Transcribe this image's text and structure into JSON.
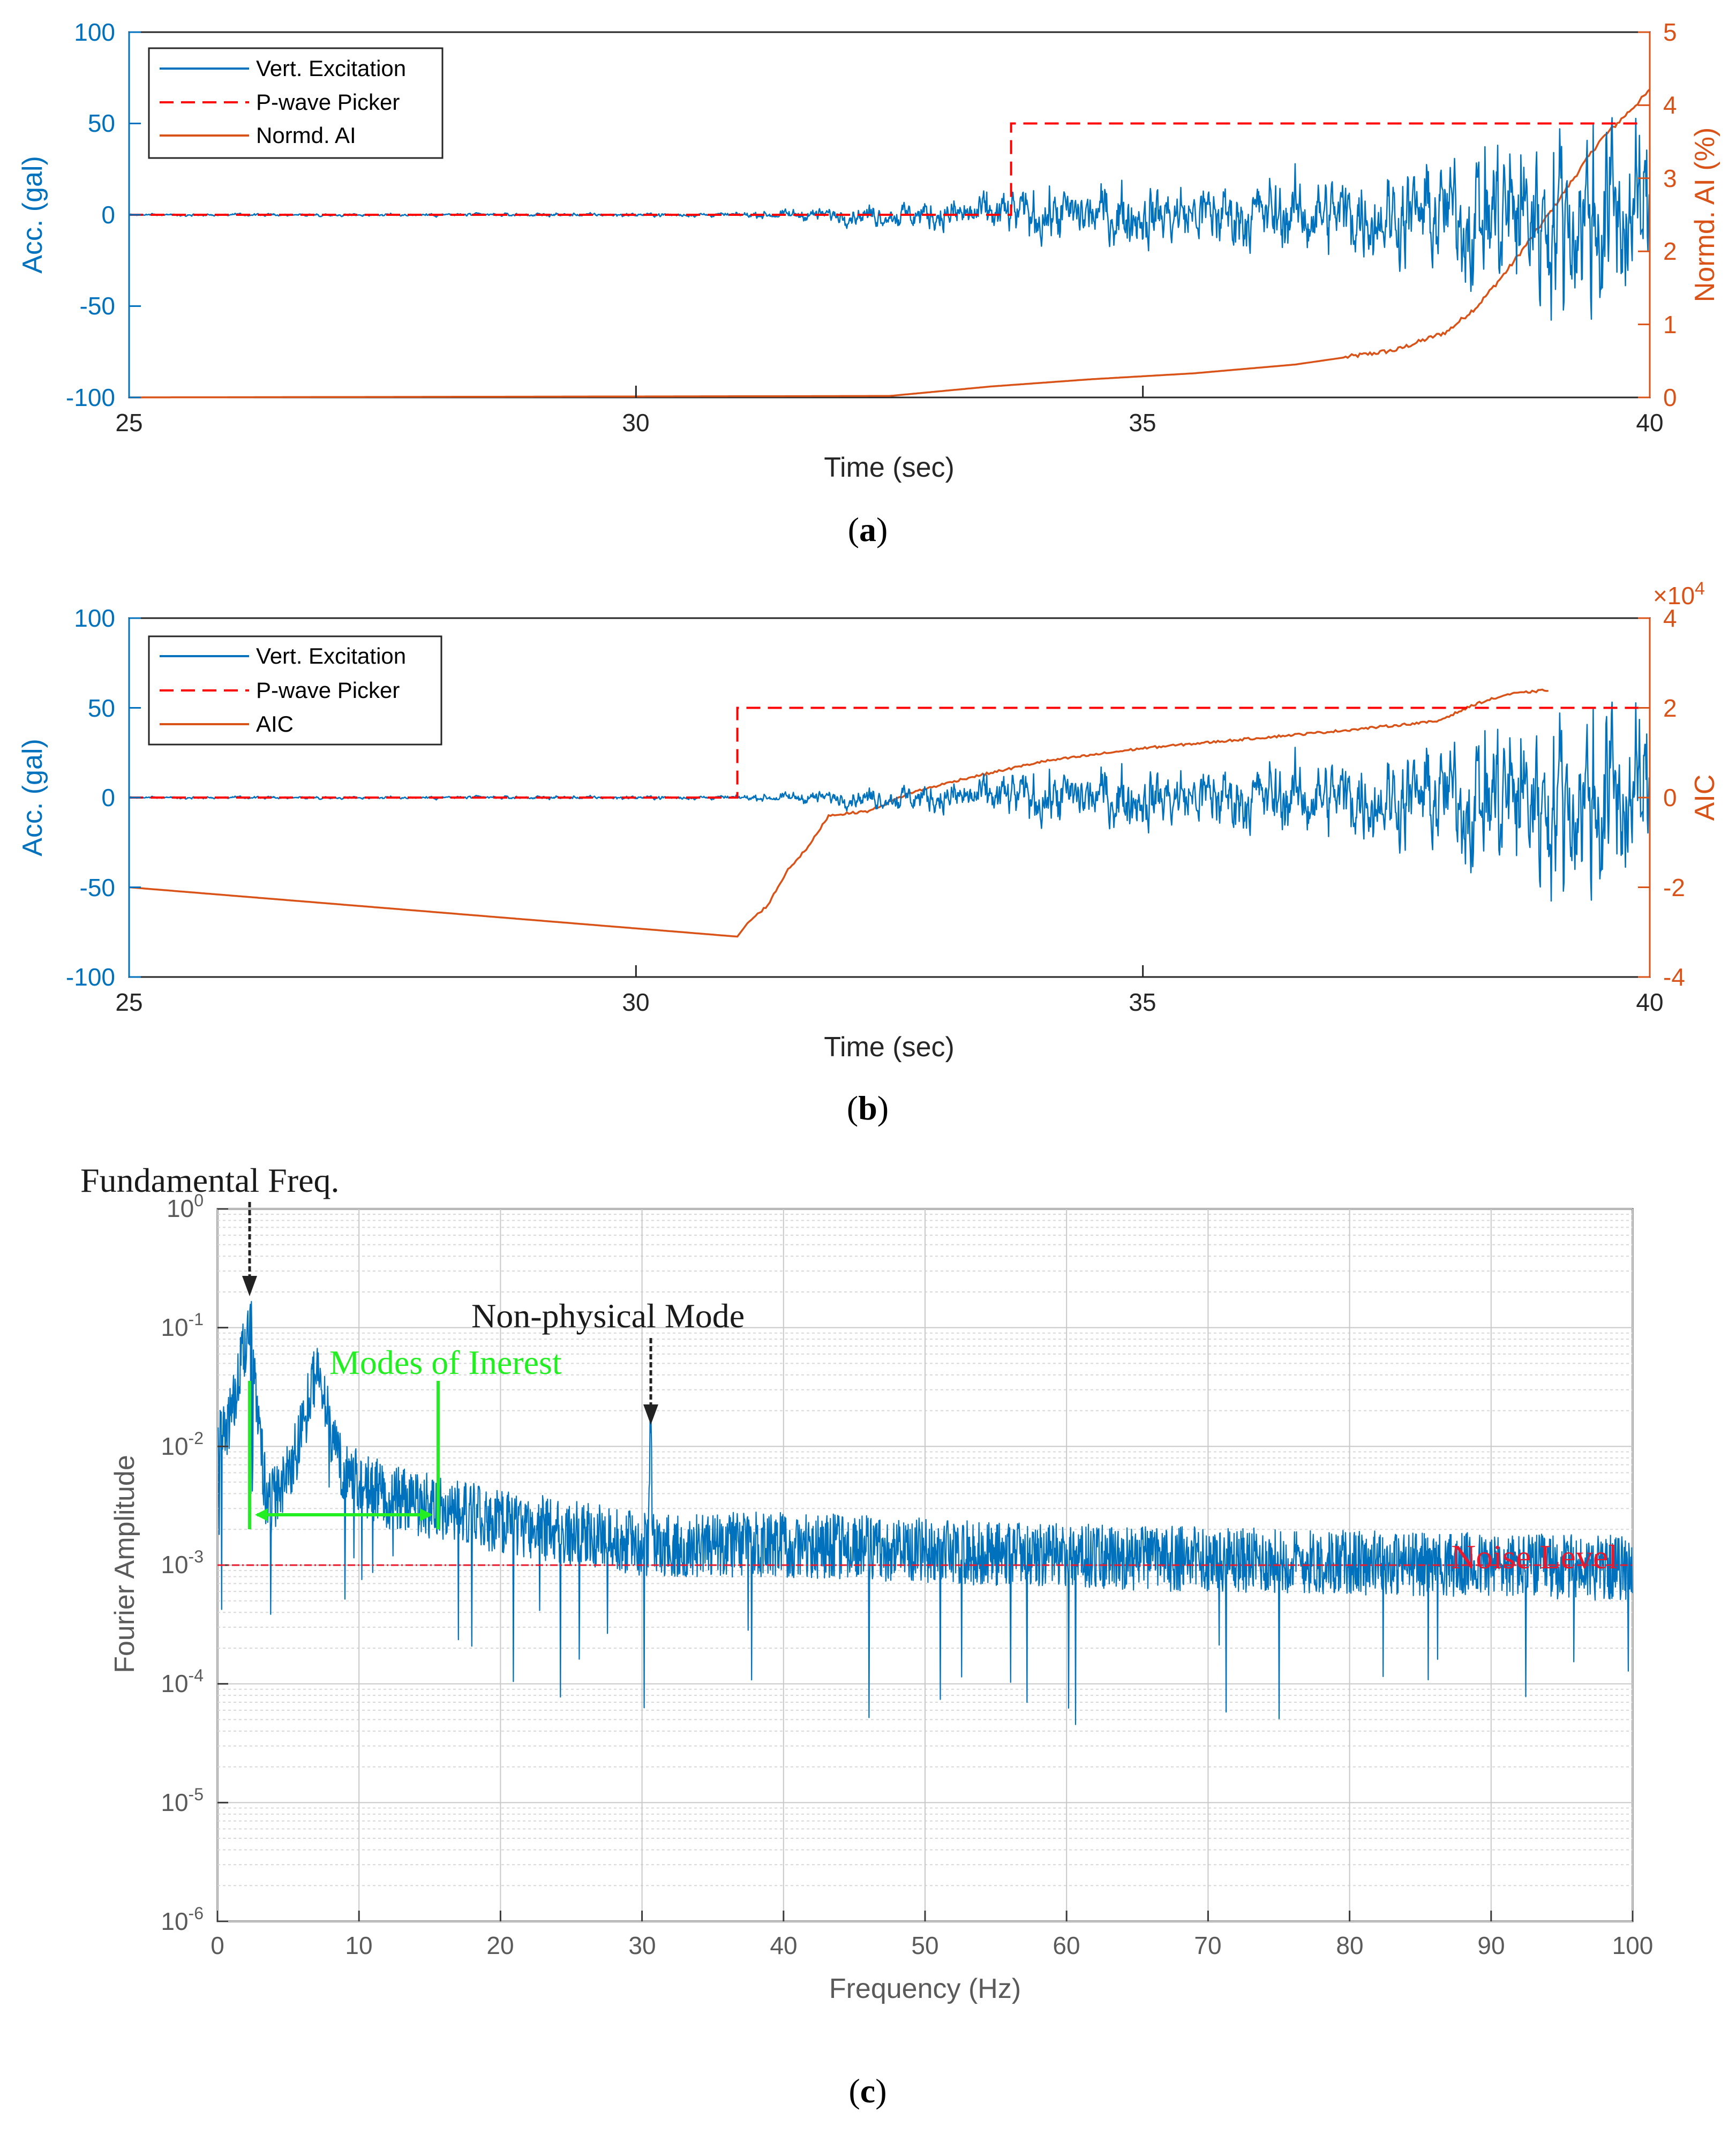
{
  "chart_data": [
    {
      "id": "a",
      "type": "line",
      "caption": "a",
      "xlabel": "Time (sec)",
      "ylabel": "Acc. (gal)",
      "y2label": "Normd. AI (%)",
      "xlim": [
        25,
        40
      ],
      "ylim": [
        -100,
        100
      ],
      "y2lim": [
        0,
        5
      ],
      "xticks": [
        "25",
        "30",
        "35",
        "40"
      ],
      "yticks": [
        "100",
        "50",
        "0",
        "-50",
        "-100"
      ],
      "y2ticks": [
        "5",
        "4",
        "3",
        "2",
        "1",
        "0"
      ],
      "legend": [
        "Vert. Excitation",
        "P-wave Picker",
        "Normd. AI"
      ],
      "colors": {
        "signal": "#0072BD",
        "picker": "#FF0000",
        "curve": "#D95319"
      },
      "signal_onset": 31.0,
      "signal_envelope": {
        "x": [
          25,
          31,
          32,
          33,
          34,
          35,
          36,
          37,
          38,
          38.5,
          39,
          39.5,
          40
        ],
        "amp": [
          0.5,
          1,
          4,
          8,
          14,
          16,
          18,
          20,
          28,
          45,
          45,
          55,
          40
        ]
      },
      "picker": {
        "x_step": 33.7,
        "y_high": 50
      },
      "curve": {
        "x": [
          25,
          32.5,
          33.5,
          34.5,
          35.5,
          36.5,
          37.5,
          38.0,
          38.3,
          38.6,
          39.0,
          39.5,
          40.0
        ],
        "y": [
          0,
          0.02,
          0.15,
          0.25,
          0.33,
          0.45,
          0.65,
          0.9,
          1.25,
          1.75,
          2.5,
          3.5,
          4.2
        ]
      }
    },
    {
      "id": "b",
      "type": "line",
      "caption": "b",
      "xlabel": "Time (sec)",
      "ylabel": "Acc. (gal)",
      "y2label": "AIC",
      "y2_exponent": "×10",
      "y2_exponent_power": "4",
      "xlim": [
        25,
        40
      ],
      "ylim": [
        -100,
        100
      ],
      "y2lim": [
        -4,
        4
      ],
      "xticks": [
        "25",
        "30",
        "35",
        "40"
      ],
      "yticks": [
        "100",
        "50",
        "0",
        "-50",
        "-100"
      ],
      "y2ticks": [
        "4",
        "2",
        "0",
        "-2",
        "-4"
      ],
      "legend": [
        "Vert. Excitation",
        "P-wave Picker",
        "AIC"
      ],
      "colors": {
        "signal": "#0072BD",
        "picker": "#FF0000",
        "curve": "#D95319"
      },
      "signal_onset": 31.0,
      "signal_envelope": {
        "x": [
          25,
          31,
          32,
          33,
          34,
          35,
          36,
          37,
          38,
          38.5,
          39,
          39.5,
          40
        ],
        "amp": [
          0.5,
          1,
          4,
          8,
          14,
          16,
          18,
          20,
          28,
          45,
          45,
          55,
          40
        ]
      },
      "picker": {
        "x_step": 31.0,
        "y_high": 50
      },
      "curve": {
        "x": [
          25,
          31.0,
          31.1,
          31.3,
          31.5,
          31.7,
          31.9,
          32.3,
          32.7,
          33.2,
          34.0,
          35.0,
          36.0,
          37.0,
          37.9,
          38.3,
          38.6,
          39.0
        ],
        "y": [
          -2.0,
          -3.1,
          -2.8,
          -2.4,
          -1.6,
          -1.1,
          -0.4,
          -0.3,
          0.1,
          0.4,
          0.8,
          1.1,
          1.3,
          1.5,
          1.7,
          2.1,
          2.3,
          2.4
        ]
      }
    },
    {
      "id": "c",
      "type": "line",
      "caption": "c",
      "scale": "log",
      "xlabel": "Frequency (Hz)",
      "ylabel": "Fourier Amplitude",
      "xlim": [
        0,
        100
      ],
      "ylim": [
        1e-06,
        1
      ],
      "xticks": [
        "0",
        "10",
        "20",
        "30",
        "40",
        "50",
        "60",
        "70",
        "80",
        "90",
        "100"
      ],
      "yticks": [
        {
          "base": "10",
          "exp": "0"
        },
        {
          "base": "10",
          "exp": "-1"
        },
        {
          "base": "10",
          "exp": "-2"
        },
        {
          "base": "10",
          "exp": "-3"
        },
        {
          "base": "10",
          "exp": "-4"
        },
        {
          "base": "10",
          "exp": "-5"
        },
        {
          "base": "10",
          "exp": "-6"
        }
      ],
      "spectrum_envelope": {
        "x": [
          0,
          1,
          2.3,
          3.5,
          5,
          7,
          9,
          12,
          16,
          20,
          25,
          30,
          40,
          60,
          80,
          100
        ],
        "log10_level": [
          -2.0,
          -1.7,
          -0.9,
          -2.5,
          -2.2,
          -1.5,
          -2.2,
          -2.4,
          -2.5,
          -2.6,
          -2.7,
          -2.8,
          -2.8,
          -2.9,
          -2.95,
          -3.0
        ]
      },
      "peaks": [
        {
          "x": 2.3,
          "log10": -0.83
        },
        {
          "x": 7.0,
          "log10": -1.4
        },
        {
          "x": 30.6,
          "log10": -1.75
        }
      ],
      "noise_level": 0.001,
      "annotations": {
        "fundamental": "Fundamental Freq.",
        "non_physical": "Non-physical Mode",
        "modes": "Modes of Inerest",
        "noise": "Noise Level"
      },
      "colors": {
        "signal": "#0072BD",
        "noise": "#E8192C",
        "modes": "#22EE22",
        "arrow": "#222222"
      }
    }
  ]
}
